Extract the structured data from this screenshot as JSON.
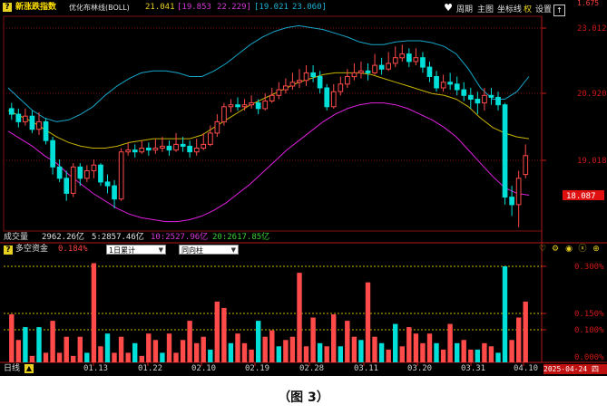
{
  "colors": {
    "background": "#000000",
    "up": "#ff4a4a",
    "down": "#00e0d8",
    "upper_band": "#17a6c8",
    "mid_band": "#c8b400",
    "lower_band": "#e020e0",
    "grid": "#7f1010",
    "axis_text": "#d01818",
    "price_tag_bg": "#e01010",
    "title_yellow": "#ffe000"
  },
  "header": {
    "app_icon": "question-icon",
    "index_name": "新涨跌指数",
    "indicator_name": "优化布林线(BOLL)",
    "val1": "21.041",
    "val2a": "[19.853",
    "val2b": "22.229]",
    "val3a": "[19.021",
    "val3b": "23.060]",
    "buttons": [
      "周期",
      "主图",
      "坐标线",
      "权",
      "设置"
    ],
    "high_tag": "1.675",
    "heart_icon": "heart-icon",
    "up_arrow_icon": "up-arrow-icon"
  },
  "price_axis": {
    "ticks": [
      "23.012",
      "20.920",
      "19.018"
    ],
    "current": "18.087"
  },
  "volume_line": {
    "label": "成交量",
    "total": "2962.26亿",
    "ma5": "5:2857.46亿",
    "ma10": "10:2527.96亿",
    "ma20": "20:2617.85亿"
  },
  "sub_panel": {
    "title": "多空资金",
    "value": "0.184%",
    "select1": "1日累计",
    "select2": "同向柱",
    "ticks": [
      "0.300%",
      "0.150%",
      "0.100%",
      "0.000%"
    ]
  },
  "footer": {
    "period": "日线",
    "dates": [
      "01.13",
      "01.22",
      "02.10",
      "02.19",
      "02.28",
      "03.11",
      "03.20",
      "03.31",
      "04.10"
    ],
    "current_date": "2025-04-24 四"
  },
  "caption": "（图 3）",
  "chart_data": {
    "type": "candlestick",
    "ylim": [
      17.6,
      23.3
    ],
    "candles": [
      [
        20.85,
        20.7,
        21.0,
        20.55
      ],
      [
        20.7,
        20.5,
        20.85,
        20.35
      ],
      [
        20.5,
        20.65,
        20.85,
        20.4
      ],
      [
        20.65,
        20.3,
        20.8,
        20.2
      ],
      [
        20.3,
        20.5,
        20.75,
        20.15
      ],
      [
        20.5,
        20.0,
        20.6,
        19.9
      ],
      [
        20.0,
        19.3,
        20.1,
        19.1
      ],
      [
        19.3,
        19.0,
        19.5,
        18.9
      ],
      [
        19.0,
        18.6,
        19.2,
        18.4
      ],
      [
        18.6,
        19.3,
        19.4,
        18.5
      ],
      [
        19.3,
        19.0,
        19.4,
        18.8
      ],
      [
        19.0,
        19.2,
        19.35,
        18.9
      ],
      [
        19.2,
        19.35,
        19.5,
        19.0
      ],
      [
        19.35,
        18.9,
        19.4,
        18.8
      ],
      [
        18.9,
        18.8,
        19.1,
        18.6
      ],
      [
        18.8,
        18.45,
        18.95,
        18.2
      ],
      [
        18.45,
        19.7,
        19.8,
        18.4
      ],
      [
        19.7,
        19.75,
        19.95,
        19.6
      ],
      [
        19.75,
        19.7,
        19.9,
        19.55
      ],
      [
        19.7,
        19.8,
        20.0,
        19.65
      ],
      [
        19.8,
        19.75,
        19.95,
        19.6
      ],
      [
        19.75,
        19.8,
        20.05,
        19.65
      ],
      [
        19.8,
        19.85,
        20.1,
        19.7
      ],
      [
        19.85,
        19.75,
        20.0,
        19.6
      ],
      [
        19.75,
        19.9,
        20.2,
        19.7
      ],
      [
        19.9,
        19.85,
        20.1,
        19.7
      ],
      [
        19.85,
        19.7,
        20.0,
        19.55
      ],
      [
        19.7,
        19.8,
        20.05,
        19.6
      ],
      [
        19.8,
        19.9,
        20.2,
        19.75
      ],
      [
        19.9,
        20.2,
        20.4,
        19.85
      ],
      [
        20.2,
        20.5,
        20.7,
        20.1
      ],
      [
        20.5,
        20.9,
        21.0,
        20.4
      ],
      [
        20.9,
        20.95,
        21.1,
        20.75
      ],
      [
        20.95,
        20.9,
        21.15,
        20.8
      ],
      [
        20.9,
        20.95,
        21.1,
        20.8
      ],
      [
        20.95,
        21.0,
        21.2,
        20.85
      ],
      [
        21.0,
        20.85,
        21.1,
        20.7
      ],
      [
        20.85,
        21.05,
        21.25,
        20.8
      ],
      [
        21.05,
        21.2,
        21.4,
        21.0
      ],
      [
        21.2,
        21.35,
        21.55,
        21.1
      ],
      [
        21.35,
        21.45,
        21.65,
        21.25
      ],
      [
        21.45,
        21.55,
        21.8,
        21.35
      ],
      [
        21.55,
        21.6,
        21.9,
        21.4
      ],
      [
        21.6,
        21.8,
        22.0,
        21.45
      ],
      [
        21.8,
        21.7,
        22.0,
        21.55
      ],
      [
        21.7,
        21.4,
        21.85,
        21.25
      ],
      [
        21.4,
        20.9,
        21.5,
        20.8
      ],
      [
        20.9,
        21.3,
        21.5,
        20.85
      ],
      [
        21.3,
        21.5,
        21.7,
        21.2
      ],
      [
        21.5,
        21.7,
        21.9,
        21.4
      ],
      [
        21.7,
        21.8,
        22.05,
        21.6
      ],
      [
        21.8,
        21.85,
        22.1,
        21.65
      ],
      [
        21.85,
        21.8,
        22.05,
        21.6
      ],
      [
        21.8,
        22.0,
        22.3,
        21.75
      ],
      [
        22.0,
        21.9,
        22.2,
        21.75
      ],
      [
        21.9,
        22.05,
        22.35,
        21.85
      ],
      [
        22.05,
        22.2,
        22.5,
        21.95
      ],
      [
        22.2,
        22.3,
        22.55,
        22.1
      ],
      [
        22.3,
        22.1,
        22.45,
        21.95
      ],
      [
        22.1,
        22.2,
        22.45,
        22.0
      ],
      [
        22.2,
        21.95,
        22.35,
        21.8
      ],
      [
        21.95,
        21.7,
        22.1,
        21.55
      ],
      [
        21.7,
        21.4,
        21.85,
        21.3
      ],
      [
        21.4,
        21.55,
        21.75,
        21.3
      ],
      [
        21.55,
        21.5,
        21.8,
        21.35
      ],
      [
        21.5,
        21.35,
        21.7,
        21.2
      ],
      [
        21.35,
        21.2,
        21.55,
        21.05
      ],
      [
        21.2,
        21.1,
        21.4,
        20.85
      ],
      [
        21.1,
        21.0,
        21.3,
        20.7
      ],
      [
        21.0,
        21.2,
        21.4,
        20.8
      ],
      [
        21.2,
        21.15,
        21.4,
        20.95
      ],
      [
        21.15,
        20.95,
        21.3,
        20.8
      ],
      [
        20.95,
        18.5,
        21.0,
        18.3
      ],
      [
        18.5,
        18.3,
        18.8,
        18.0
      ],
      [
        18.3,
        19.0,
        19.2,
        17.7
      ],
      [
        19.1,
        19.6,
        19.9,
        19.0
      ]
    ],
    "boll_upper": [
      21.4,
      21.1,
      20.8,
      20.6,
      20.5,
      20.55,
      20.7,
      20.9,
      21.2,
      21.45,
      21.65,
      21.8,
      21.85,
      21.85,
      21.8,
      21.7,
      21.7,
      21.85,
      22.05,
      22.3,
      22.55,
      22.75,
      22.9,
      23.0,
      23.05,
      23.0,
      22.95,
      22.85,
      22.75,
      22.62,
      22.55,
      22.55,
      22.62,
      22.65,
      22.65,
      22.6,
      22.5,
      22.3,
      21.9,
      21.4,
      21.1,
      21.1,
      21.3,
      21.7
    ],
    "boll_mid": [
      20.8,
      20.65,
      20.5,
      20.3,
      20.1,
      19.95,
      19.85,
      19.8,
      19.8,
      19.85,
      19.95,
      20.0,
      20.05,
      20.05,
      20.05,
      20.05,
      20.15,
      20.35,
      20.55,
      20.75,
      20.95,
      21.1,
      21.25,
      21.4,
      21.55,
      21.65,
      21.75,
      21.8,
      21.8,
      21.8,
      21.75,
      21.65,
      21.55,
      21.45,
      21.35,
      21.25,
      21.2,
      21.1,
      20.9,
      20.6,
      20.35,
      20.2,
      20.1,
      20.05
    ],
    "boll_lower": [
      20.25,
      20.05,
      19.85,
      19.6,
      19.4,
      19.1,
      18.85,
      18.6,
      18.4,
      18.2,
      18.05,
      17.95,
      17.9,
      17.85,
      17.85,
      17.9,
      18.0,
      18.15,
      18.35,
      18.6,
      18.85,
      19.15,
      19.45,
      19.75,
      20.0,
      20.25,
      20.5,
      20.7,
      20.85,
      20.95,
      21.0,
      21.0,
      20.95,
      20.85,
      20.7,
      20.55,
      20.35,
      20.1,
      19.75,
      19.4,
      19.05,
      18.75,
      18.6,
      18.55
    ],
    "money_flow": {
      "ylim": [
        0,
        0.32
      ],
      "values": [
        0.15,
        0.07,
        0.11,
        0.02,
        0.11,
        0.03,
        0.13,
        0.03,
        0.08,
        0.02,
        0.08,
        0.03,
        0.31,
        0.05,
        0.09,
        0.03,
        0.08,
        0.03,
        0.06,
        0.02,
        0.09,
        0.07,
        0.03,
        0.09,
        0.03,
        0.07,
        0.13,
        0.06,
        0.08,
        0.04,
        0.19,
        0.17,
        0.06,
        0.09,
        0.06,
        0.04,
        0.13,
        0.08,
        0.1,
        0.05,
        0.07,
        0.08,
        0.28,
        0.05,
        0.14,
        0.06,
        0.05,
        0.15,
        0.05,
        0.13,
        0.08,
        0.07,
        0.25,
        0.08,
        0.06,
        0.04,
        0.12,
        0.05,
        0.11,
        0.09,
        0.06,
        0.09,
        0.06,
        0.04,
        0.12,
        0.06,
        0.07,
        0.04,
        0.04,
        0.06,
        0.05,
        0.03,
        0.3,
        0.07,
        0.14,
        0.19
      ],
      "signs": [
        1,
        1,
        -1,
        1,
        -1,
        1,
        1,
        1,
        1,
        1,
        1,
        -1,
        1,
        1,
        -1,
        1,
        1,
        1,
        -1,
        1,
        1,
        1,
        -1,
        1,
        1,
        1,
        1,
        1,
        1,
        -1,
        1,
        1,
        -1,
        1,
        1,
        1,
        -1,
        1,
        1,
        -1,
        1,
        1,
        1,
        1,
        1,
        -1,
        1,
        1,
        -1,
        1,
        1,
        -1,
        1,
        1,
        -1,
        1,
        -1,
        1,
        1,
        1,
        1,
        1,
        -1,
        1,
        1,
        -1,
        1,
        1,
        -1,
        1,
        1,
        -1,
        -1,
        1,
        1,
        1
      ]
    }
  }
}
